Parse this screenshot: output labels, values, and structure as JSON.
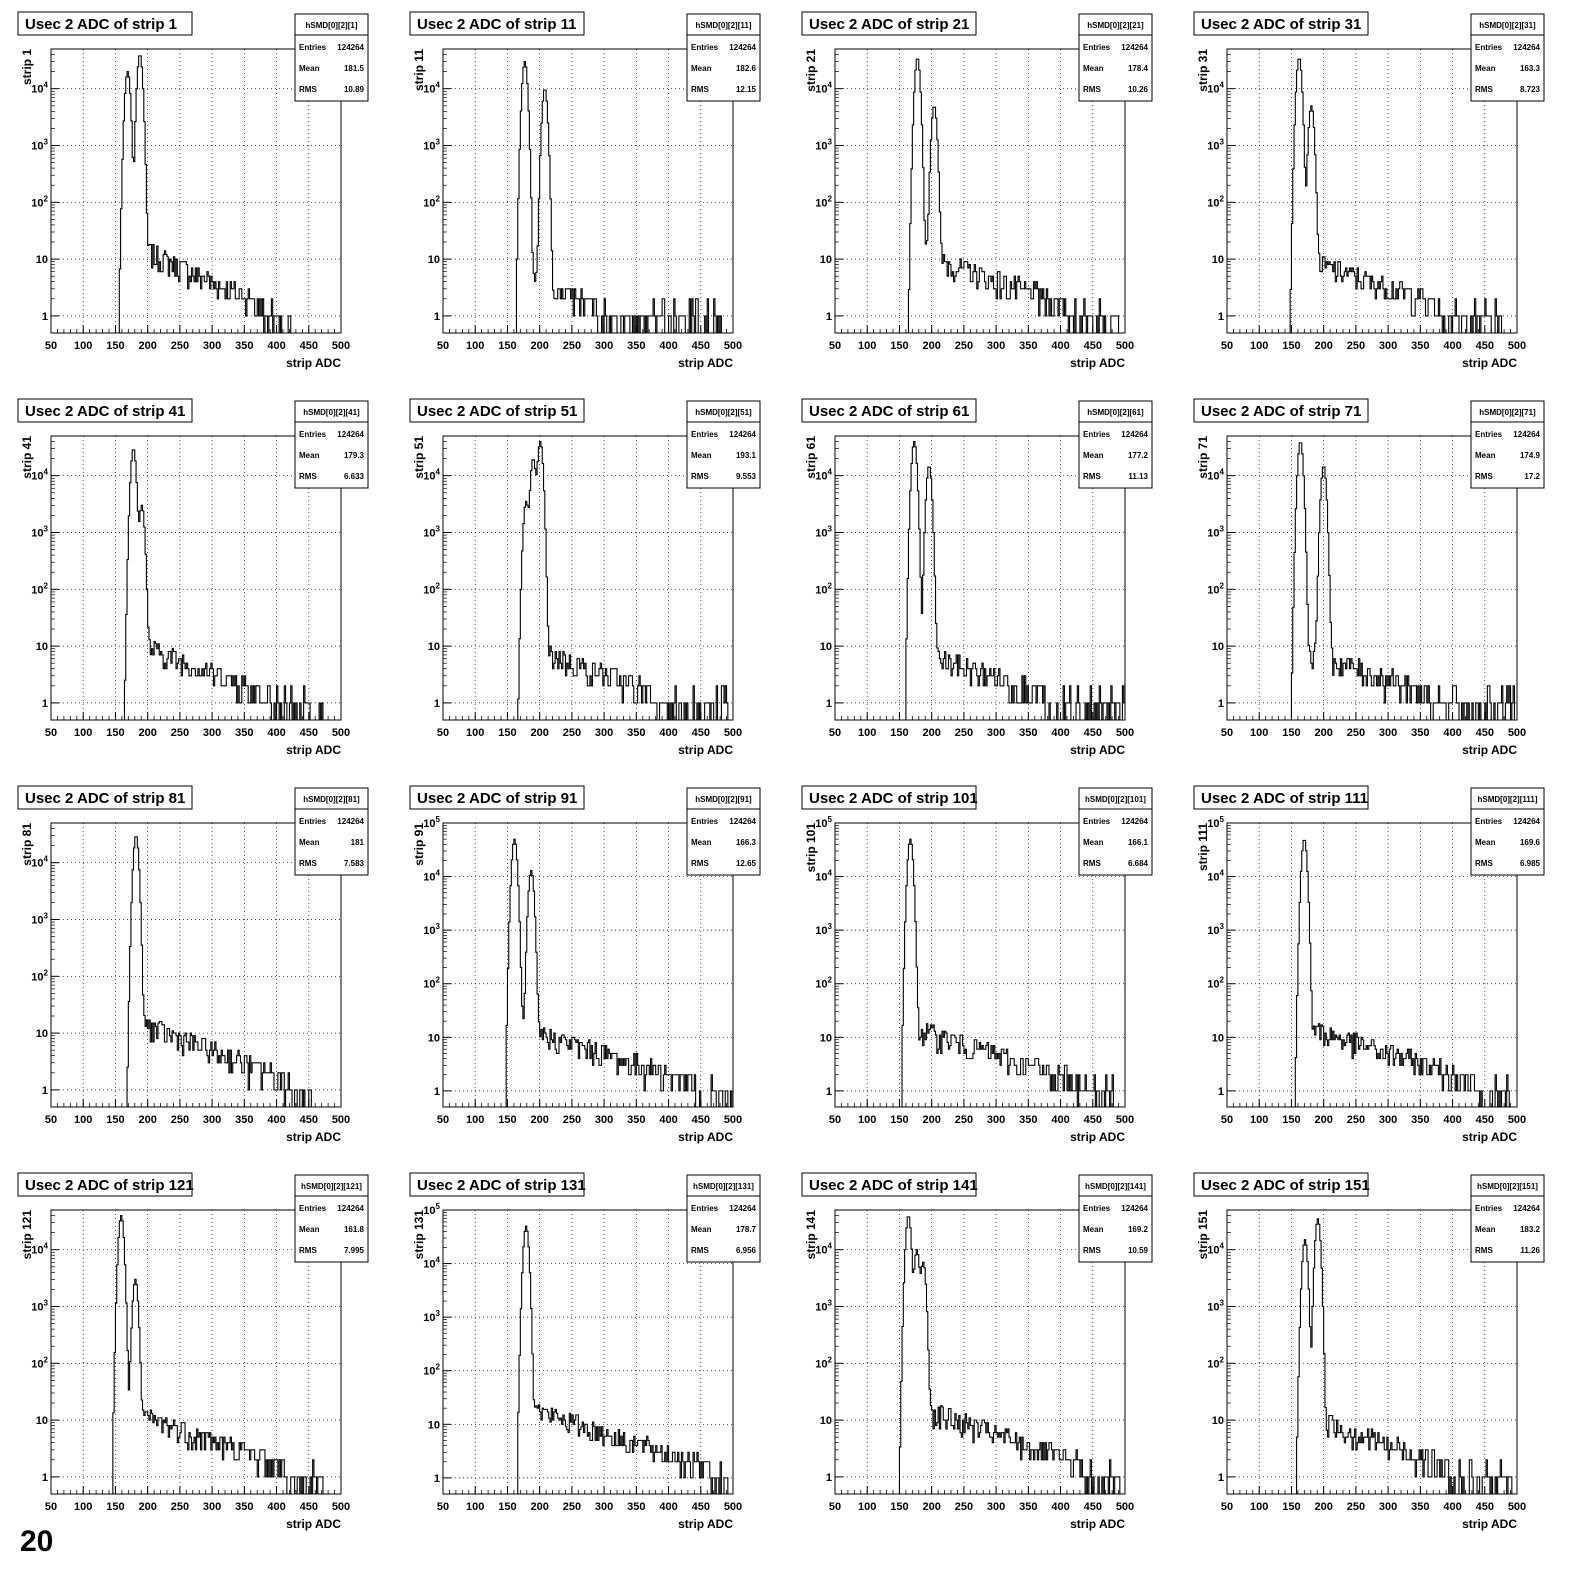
{
  "page": {
    "footer_text": "20"
  },
  "chart_data": [
    {
      "type": "histogram",
      "title": "Usec 2 ADC of strip 1",
      "stats": {
        "name": "hSMD[0][2][1]",
        "entries_label": "Entries",
        "entries": "124264",
        "mean_label": "Mean",
        "mean": "181.5",
        "rms_label": "RMS",
        "rms": "10.89"
      },
      "xlabel": "strip ADC",
      "ylabel": "strip 1",
      "xlim": [
        50,
        500
      ],
      "xticks": [
        "50",
        "100",
        "150",
        "200",
        "250",
        "300",
        "350",
        "400",
        "450",
        "500"
      ],
      "yscale": "log",
      "ylim": [
        0.5,
        50000
      ],
      "yticks": [
        "1",
        "10",
        "10^2",
        "10^3",
        "10^4"
      ],
      "grid": true,
      "peaks": [
        {
          "x": 168,
          "y": 20000
        },
        {
          "x": 187,
          "y": 40000
        }
      ],
      "tail": {
        "start": 190,
        "level": 15,
        "end": 420
      }
    },
    {
      "type": "histogram",
      "title": "Usec 2 ADC of strip 11",
      "stats": {
        "name": "hSMD[0][2][11]",
        "entries_label": "Entries",
        "entries": "124264",
        "mean_label": "Mean",
        "mean": "182.6",
        "rms_label": "RMS",
        "rms": "12.15"
      },
      "xlabel": "strip ADC",
      "ylabel": "strip 11",
      "xlim": [
        50,
        500
      ],
      "xticks": [
        "50",
        "100",
        "150",
        "200",
        "250",
        "300",
        "350",
        "400",
        "450",
        "500"
      ],
      "yscale": "log",
      "ylim": [
        0.5,
        50000
      ],
      "yticks": [
        "1",
        "10",
        "10^2",
        "10^3",
        "10^4"
      ],
      "grid": true,
      "peaks": [
        {
          "x": 176,
          "y": 30000
        },
        {
          "x": 207,
          "y": 10000
        }
      ],
      "tail": {
        "start": 185,
        "level": 4,
        "end": 480
      }
    },
    {
      "type": "histogram",
      "title": "Usec 2 ADC of strip 21",
      "stats": {
        "name": "hSMD[0][2][21]",
        "entries_label": "Entries",
        "entries": "124264",
        "mean_label": "Mean",
        "mean": "178.4",
        "rms_label": "RMS",
        "rms": "10.26"
      },
      "xlabel": "strip ADC",
      "ylabel": "strip 21",
      "xlim": [
        50,
        500
      ],
      "xticks": [
        "50",
        "100",
        "150",
        "200",
        "250",
        "300",
        "350",
        "400",
        "450",
        "500"
      ],
      "yscale": "log",
      "ylim": [
        0.5,
        50000
      ],
      "yticks": [
        "1",
        "10",
        "10^2",
        "10^3",
        "10^4"
      ],
      "grid": true,
      "peaks": [
        {
          "x": 177,
          "y": 35000
        },
        {
          "x": 203,
          "y": 5000
        }
      ],
      "tail": {
        "start": 185,
        "level": 12,
        "end": 490
      }
    },
    {
      "type": "histogram",
      "title": "Usec 2 ADC of strip 31",
      "stats": {
        "name": "hSMD[0][2][31]",
        "entries_label": "Entries",
        "entries": "124264",
        "mean_label": "Mean",
        "mean": "163.3",
        "rms_label": "RMS",
        "rms": "8.723"
      },
      "xlabel": "strip ADC",
      "ylabel": "strip 31",
      "xlim": [
        50,
        500
      ],
      "xticks": [
        "50",
        "100",
        "150",
        "200",
        "250",
        "300",
        "350",
        "400",
        "450",
        "500"
      ],
      "yscale": "log",
      "ylim": [
        0.5,
        50000
      ],
      "yticks": [
        "1",
        "10",
        "10^2",
        "10^3",
        "10^4"
      ],
      "grid": true,
      "peaks": [
        {
          "x": 161,
          "y": 35000
        },
        {
          "x": 180,
          "y": 5000
        }
      ],
      "tail": {
        "start": 170,
        "level": 10,
        "end": 480
      }
    },
    {
      "type": "histogram",
      "title": "Usec 2 ADC of strip 41",
      "stats": {
        "name": "hSMD[0][2][41]",
        "entries_label": "Entries",
        "entries": "124264",
        "mean_label": "Mean",
        "mean": "179.3",
        "rms_label": "RMS",
        "rms": "6.633"
      },
      "xlabel": "strip ADC",
      "ylabel": "strip 41",
      "xlim": [
        50,
        500
      ],
      "xticks": [
        "50",
        "100",
        "150",
        "200",
        "250",
        "300",
        "350",
        "400",
        "450",
        "500"
      ],
      "yscale": "log",
      "ylim": [
        0.5,
        50000
      ],
      "yticks": [
        "1",
        "10",
        "10^2",
        "10^3",
        "10^4"
      ],
      "grid": true,
      "peaks": [
        {
          "x": 177,
          "y": 30000
        },
        {
          "x": 190,
          "y": 3000
        }
      ],
      "tail": {
        "start": 190,
        "level": 10,
        "end": 480
      }
    },
    {
      "type": "histogram",
      "title": "Usec 2 ADC of strip 51",
      "stats": {
        "name": "hSMD[0][2][51]",
        "entries_label": "Entries",
        "entries": "124264",
        "mean_label": "Mean",
        "mean": "193.1",
        "rms_label": "RMS",
        "rms": "9.553"
      },
      "xlabel": "strip ADC",
      "ylabel": "strip 51",
      "xlim": [
        50,
        500
      ],
      "xticks": [
        "50",
        "100",
        "150",
        "200",
        "250",
        "300",
        "350",
        "400",
        "450",
        "500"
      ],
      "yscale": "log",
      "ylim": [
        0.5,
        50000
      ],
      "yticks": [
        "1",
        "10",
        "10^2",
        "10^3",
        "10^4"
      ],
      "grid": true,
      "peaks": [
        {
          "x": 178,
          "y": 3500
        },
        {
          "x": 189,
          "y": 20000
        },
        {
          "x": 200,
          "y": 40000
        }
      ],
      "tail": {
        "start": 205,
        "level": 8,
        "end": 490
      }
    },
    {
      "type": "histogram",
      "title": "Usec 2 ADC of strip 61",
      "stats": {
        "name": "hSMD[0][2][61]",
        "entries_label": "Entries",
        "entries": "124264",
        "mean_label": "Mean",
        "mean": "177.2",
        "rms_label": "RMS",
        "rms": "11.13"
      },
      "xlabel": "strip ADC",
      "ylabel": "strip 61",
      "xlim": [
        50,
        500
      ],
      "xticks": [
        "50",
        "100",
        "150",
        "200",
        "250",
        "300",
        "350",
        "400",
        "450",
        "500"
      ],
      "yscale": "log",
      "ylim": [
        0.5,
        50000
      ],
      "yticks": [
        "1",
        "10",
        "10^2",
        "10^3",
        "10^4"
      ],
      "grid": true,
      "peaks": [
        {
          "x": 172,
          "y": 40000
        },
        {
          "x": 195,
          "y": 15000
        }
      ],
      "tail": {
        "start": 180,
        "level": 8,
        "end": 500
      }
    },
    {
      "type": "histogram",
      "title": "Usec 2 ADC of strip 71",
      "stats": {
        "name": "hSMD[0][2][71]",
        "entries_label": "Entries",
        "entries": "124264",
        "mean_label": "Mean",
        "mean": "174.9",
        "rms_label": "RMS",
        "rms": "17.2"
      },
      "xlabel": "strip ADC",
      "ylabel": "strip 71",
      "xlim": [
        50,
        500
      ],
      "xticks": [
        "50",
        "100",
        "150",
        "200",
        "250",
        "300",
        "350",
        "400",
        "450",
        "500"
      ],
      "yscale": "log",
      "ylim": [
        0.5,
        50000
      ],
      "yticks": [
        "1",
        "10",
        "10^2",
        "10^3",
        "10^4"
      ],
      "grid": true,
      "peaks": [
        {
          "x": 163,
          "y": 40000
        },
        {
          "x": 199,
          "y": 15000
        }
      ],
      "tail": {
        "start": 170,
        "level": 8,
        "end": 495
      }
    },
    {
      "type": "histogram",
      "title": "Usec 2 ADC of strip 81",
      "stats": {
        "name": "hSMD[0][2][81]",
        "entries_label": "Entries",
        "entries": "124264",
        "mean_label": "Mean",
        "mean": "181",
        "rms_label": "RMS",
        "rms": "7.583"
      },
      "xlabel": "strip ADC",
      "ylabel": "strip 81",
      "xlim": [
        50,
        500
      ],
      "xticks": [
        "50",
        "100",
        "150",
        "200",
        "250",
        "300",
        "350",
        "400",
        "450",
        "500"
      ],
      "yscale": "log",
      "ylim": [
        0.5,
        50000
      ],
      "yticks": [
        "1",
        "10",
        "10^2",
        "10^3",
        "10^4"
      ],
      "grid": true,
      "peaks": [
        {
          "x": 181,
          "y": 30000
        }
      ],
      "tail": {
        "start": 188,
        "level": 15,
        "end": 460
      }
    },
    {
      "type": "histogram",
      "title": "Usec 2 ADC of strip 91",
      "stats": {
        "name": "hSMD[0][2][91]",
        "entries_label": "Entries",
        "entries": "124264",
        "mean_label": "Mean",
        "mean": "166.3",
        "rms_label": "RMS",
        "rms": "12.65"
      },
      "xlabel": "strip ADC",
      "ylabel": "strip 91",
      "xlim": [
        50,
        500
      ],
      "xticks": [
        "50",
        "100",
        "150",
        "200",
        "250",
        "300",
        "350",
        "400",
        "450",
        "500"
      ],
      "yscale": "log",
      "ylim": [
        0.5,
        100000
      ],
      "yticks": [
        "1",
        "10",
        "10^2",
        "10^3",
        "10^4",
        "10^5"
      ],
      "grid": true,
      "peaks": [
        {
          "x": 160,
          "y": 50000
        },
        {
          "x": 186,
          "y": 13000
        }
      ],
      "tail": {
        "start": 168,
        "level": 15,
        "end": 500
      }
    },
    {
      "type": "histogram",
      "title": "Usec 2 ADC of strip 101",
      "stats": {
        "name": "hSMD[0][2][101]",
        "entries_label": "Entries",
        "entries": "124264",
        "mean_label": "Mean",
        "mean": "166.1",
        "rms_label": "RMS",
        "rms": "6.684"
      },
      "xlabel": "strip ADC",
      "ylabel": "strip 101",
      "xlim": [
        50,
        500
      ],
      "xticks": [
        "50",
        "100",
        "150",
        "200",
        "250",
        "300",
        "350",
        "400",
        "450",
        "500"
      ],
      "yscale": "log",
      "ylim": [
        0.5,
        100000
      ],
      "yticks": [
        "1",
        "10",
        "10^2",
        "10^3",
        "10^4",
        "10^5"
      ],
      "grid": true,
      "peaks": [
        {
          "x": 166,
          "y": 50000
        }
      ],
      "tail": {
        "start": 172,
        "level": 15,
        "end": 480
      }
    },
    {
      "type": "histogram",
      "title": "Usec 2 ADC of strip 111",
      "stats": {
        "name": "hSMD[0][2][111]",
        "entries_label": "Entries",
        "entries": "124264",
        "mean_label": "Mean",
        "mean": "169.6",
        "rms_label": "RMS",
        "rms": "6.985"
      },
      "xlabel": "strip ADC",
      "ylabel": "strip 111",
      "xlim": [
        50,
        500
      ],
      "xticks": [
        "50",
        "100",
        "150",
        "200",
        "250",
        "300",
        "350",
        "400",
        "450",
        "500"
      ],
      "yscale": "log",
      "ylim": [
        0.5,
        100000
      ],
      "yticks": [
        "1",
        "10",
        "10^2",
        "10^3",
        "10^4",
        "10^5"
      ],
      "grid": true,
      "peaks": [
        {
          "x": 169,
          "y": 50000
        }
      ],
      "tail": {
        "start": 175,
        "level": 15,
        "end": 495
      }
    },
    {
      "type": "histogram",
      "title": "Usec 2 ADC of strip 121",
      "stats": {
        "name": "hSMD[0][2][121]",
        "entries_label": "Entries",
        "entries": "124264",
        "mean_label": "Mean",
        "mean": "161.8",
        "rms_label": "RMS",
        "rms": "7.995"
      },
      "xlabel": "strip ADC",
      "ylabel": "strip 121",
      "xlim": [
        50,
        500
      ],
      "xticks": [
        "50",
        "100",
        "150",
        "200",
        "250",
        "300",
        "350",
        "400",
        "450",
        "500"
      ],
      "yscale": "log",
      "ylim": [
        0.5,
        50000
      ],
      "yticks": [
        "1",
        "10",
        "10^2",
        "10^3",
        "10^4"
      ],
      "grid": true,
      "peaks": [
        {
          "x": 158,
          "y": 40000
        },
        {
          "x": 180,
          "y": 3000
        }
      ],
      "tail": {
        "start": 165,
        "level": 15,
        "end": 470
      }
    },
    {
      "type": "histogram",
      "title": "Usec 2 ADC of strip 131",
      "stats": {
        "name": "hSMD[0][2][131]",
        "entries_label": "Entries",
        "entries": "124264",
        "mean_label": "Mean",
        "mean": "178.7",
        "rms_label": "RMS",
        "rms": "6.956"
      },
      "xlabel": "strip ADC",
      "ylabel": "strip 131",
      "xlim": [
        50,
        500
      ],
      "xticks": [
        "50",
        "100",
        "150",
        "200",
        "250",
        "300",
        "350",
        "400",
        "450",
        "500"
      ],
      "yscale": "log",
      "ylim": [
        0.5,
        100000
      ],
      "yticks": [
        "1",
        "10",
        "10^2",
        "10^3",
        "10^4",
        "10^5"
      ],
      "grid": true,
      "peaks": [
        {
          "x": 178,
          "y": 50000
        }
      ],
      "tail": {
        "start": 185,
        "level": 20,
        "end": 490
      }
    },
    {
      "type": "histogram",
      "title": "Usec 2 ADC of strip 141",
      "stats": {
        "name": "hSMD[0][2][141]",
        "entries_label": "Entries",
        "entries": "124264",
        "mean_label": "Mean",
        "mean": "169.2",
        "rms_label": "RMS",
        "rms": "10.59"
      },
      "xlabel": "strip ADC",
      "ylabel": "strip 141",
      "xlim": [
        50,
        500
      ],
      "xticks": [
        "50",
        "100",
        "150",
        "200",
        "250",
        "300",
        "350",
        "400",
        "450",
        "500"
      ],
      "yscale": "log",
      "ylim": [
        0.5,
        50000
      ],
      "yticks": [
        "1",
        "10",
        "10^2",
        "10^3",
        "10^4"
      ],
      "grid": true,
      "peaks": [
        {
          "x": 163,
          "y": 40000
        },
        {
          "x": 176,
          "y": 10000
        },
        {
          "x": 186,
          "y": 6000
        }
      ],
      "tail": {
        "start": 195,
        "level": 15,
        "end": 490
      }
    },
    {
      "type": "histogram",
      "title": "Usec 2 ADC of strip 151",
      "stats": {
        "name": "hSMD[0][2][151]",
        "entries_label": "Entries",
        "entries": "124264",
        "mean_label": "Mean",
        "mean": "183.2",
        "rms_label": "RMS",
        "rms": "11.26"
      },
      "xlabel": "strip ADC",
      "ylabel": "strip 151",
      "xlim": [
        50,
        500
      ],
      "xticks": [
        "50",
        "100",
        "150",
        "200",
        "250",
        "300",
        "350",
        "400",
        "450",
        "500"
      ],
      "yscale": "log",
      "ylim": [
        0.5,
        50000
      ],
      "yticks": [
        "1",
        "10",
        "10^2",
        "10^3",
        "10^4"
      ],
      "grid": true,
      "peaks": [
        {
          "x": 170,
          "y": 15000
        },
        {
          "x": 190,
          "y": 35000
        }
      ],
      "tail": {
        "start": 195,
        "level": 10,
        "end": 490
      }
    }
  ]
}
